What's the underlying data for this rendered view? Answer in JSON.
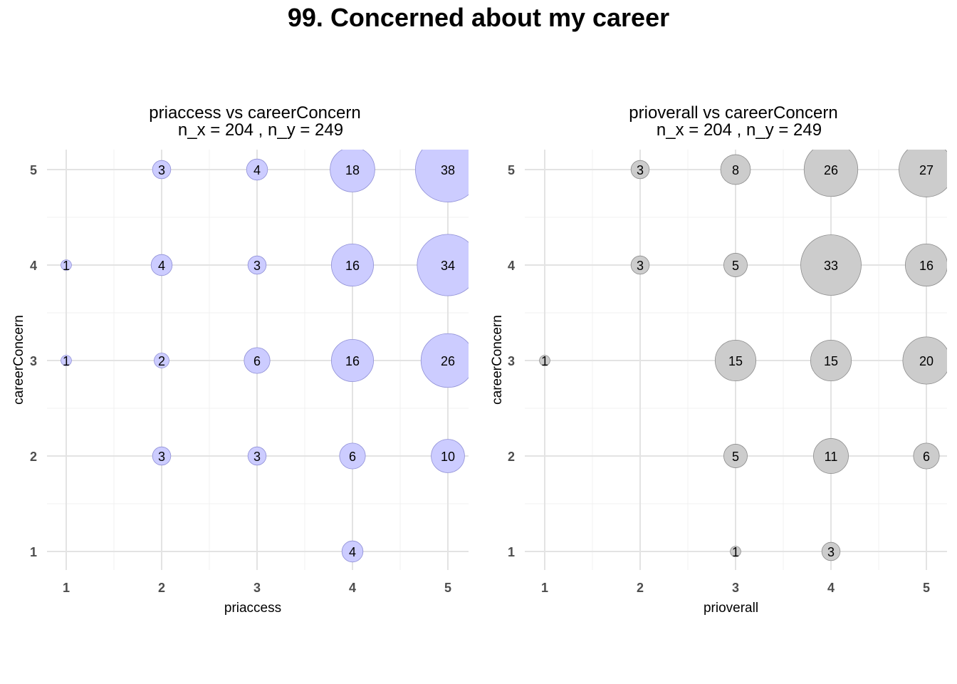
{
  "title": "99. Concerned about my career",
  "chart_data": [
    {
      "type": "scatter",
      "title": "priaccess vs careerConcern",
      "subtitle": "n_x = 204 , n_y = 249",
      "xlabel": "priaccess",
      "ylabel": "careerConcern",
      "xlim": [
        1,
        5
      ],
      "ylim": [
        1,
        5
      ],
      "xticks": [
        "1",
        "2",
        "3",
        "4",
        "5"
      ],
      "yticks": [
        "1",
        "2",
        "3",
        "4",
        "5"
      ],
      "fill_color": "#ccccff",
      "stroke_color": "#8f8fd6",
      "points": [
        {
          "x": 2,
          "y": 5,
          "n": 3
        },
        {
          "x": 3,
          "y": 5,
          "n": 4
        },
        {
          "x": 4,
          "y": 5,
          "n": 18
        },
        {
          "x": 5,
          "y": 5,
          "n": 38
        },
        {
          "x": 1,
          "y": 4,
          "n": 1
        },
        {
          "x": 2,
          "y": 4,
          "n": 4
        },
        {
          "x": 3,
          "y": 4,
          "n": 3
        },
        {
          "x": 4,
          "y": 4,
          "n": 16
        },
        {
          "x": 5,
          "y": 4,
          "n": 34
        },
        {
          "x": 1,
          "y": 3,
          "n": 1
        },
        {
          "x": 2,
          "y": 3,
          "n": 2
        },
        {
          "x": 3,
          "y": 3,
          "n": 6
        },
        {
          "x": 4,
          "y": 3,
          "n": 16
        },
        {
          "x": 5,
          "y": 3,
          "n": 26
        },
        {
          "x": 2,
          "y": 2,
          "n": 3
        },
        {
          "x": 3,
          "y": 2,
          "n": 3
        },
        {
          "x": 4,
          "y": 2,
          "n": 6
        },
        {
          "x": 5,
          "y": 2,
          "n": 10
        },
        {
          "x": 4,
          "y": 1,
          "n": 4
        }
      ]
    },
    {
      "type": "scatter",
      "title": "prioverall vs careerConcern",
      "subtitle": "n_x = 204 , n_y = 249",
      "xlabel": "prioverall",
      "ylabel": "careerConcern",
      "xlim": [
        1,
        5
      ],
      "ylim": [
        1,
        5
      ],
      "xticks": [
        "1",
        "2",
        "3",
        "4",
        "5"
      ],
      "yticks": [
        "1",
        "2",
        "3",
        "4",
        "5"
      ],
      "fill_color": "#cccccc",
      "stroke_color": "#8c8c8c",
      "points": [
        {
          "x": 2,
          "y": 5,
          "n": 3
        },
        {
          "x": 3,
          "y": 5,
          "n": 8
        },
        {
          "x": 4,
          "y": 5,
          "n": 26
        },
        {
          "x": 5,
          "y": 5,
          "n": 27
        },
        {
          "x": 2,
          "y": 4,
          "n": 3
        },
        {
          "x": 3,
          "y": 4,
          "n": 5
        },
        {
          "x": 4,
          "y": 4,
          "n": 33
        },
        {
          "x": 5,
          "y": 4,
          "n": 16
        },
        {
          "x": 1,
          "y": 3,
          "n": 1
        },
        {
          "x": 3,
          "y": 3,
          "n": 15
        },
        {
          "x": 4,
          "y": 3,
          "n": 15
        },
        {
          "x": 5,
          "y": 3,
          "n": 20
        },
        {
          "x": 3,
          "y": 2,
          "n": 5
        },
        {
          "x": 4,
          "y": 2,
          "n": 11
        },
        {
          "x": 5,
          "y": 2,
          "n": 6
        },
        {
          "x": 3,
          "y": 1,
          "n": 1
        },
        {
          "x": 4,
          "y": 1,
          "n": 3
        }
      ]
    }
  ]
}
